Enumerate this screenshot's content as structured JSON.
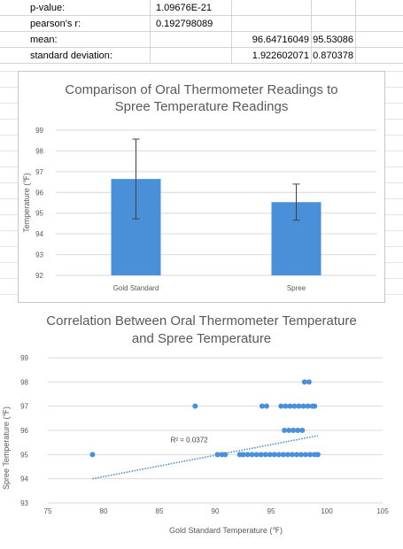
{
  "sheet": {
    "rows": [
      {
        "label": "p-value:",
        "b": "1.09676E-21",
        "c": "",
        "d": ""
      },
      {
        "label": "pearson's r:",
        "b": "0.192798089",
        "c": "",
        "d": ""
      },
      {
        "label": "mean:",
        "b": "",
        "c": "96.64716049",
        "d": "95.53086"
      },
      {
        "label": "standard deviation:",
        "b": "",
        "c": "1.922602071",
        "d": "0.870378"
      }
    ]
  },
  "chart_data": [
    {
      "type": "bar",
      "title_line1": "Comparison of Oral Thermometer Readings to",
      "title_line2": "Spree Temperature Readings",
      "ylabel": "Temperature (℉)",
      "categories": [
        "Gold Standard",
        "Spree"
      ],
      "values": [
        96.647,
        95.531
      ],
      "error": [
        1.923,
        0.87
      ],
      "ylim": [
        92,
        99
      ],
      "yticks": [
        "92",
        "93",
        "94",
        "95",
        "96",
        "97",
        "98",
        "99"
      ],
      "bar_color": "#4a90d9",
      "grid": true
    },
    {
      "type": "scatter",
      "title_line1": "Correlation Between Oral Thermometer Temperature",
      "title_line2": "and Spree Temperature",
      "xlabel": "Gold Standard Temperature (℉)",
      "ylabel": "Spree Temperature (℉)",
      "xlim": [
        75,
        105
      ],
      "ylim": [
        93,
        99
      ],
      "xticks": [
        "75",
        "80",
        "85",
        "90",
        "95",
        "100",
        "105"
      ],
      "yticks": [
        "93",
        "94",
        "95",
        "96",
        "97",
        "98",
        "99"
      ],
      "r2_label": "R² = 0.0372",
      "trendline": {
        "x1": 79,
        "y1": 94.0,
        "x2": 99.2,
        "y2": 95.78
      },
      "point_color": "#4a90d9",
      "points": [
        [
          79.0,
          95
        ],
        [
          88.2,
          97
        ],
        [
          90.2,
          95
        ],
        [
          90.6,
          95
        ],
        [
          90.9,
          95
        ],
        [
          92.2,
          95
        ],
        [
          92.5,
          95
        ],
        [
          92.9,
          95
        ],
        [
          93.3,
          95
        ],
        [
          93.7,
          95
        ],
        [
          94.1,
          95
        ],
        [
          94.5,
          95
        ],
        [
          94.9,
          95
        ],
        [
          95.3,
          95
        ],
        [
          95.7,
          95
        ],
        [
          96.1,
          95
        ],
        [
          96.5,
          95
        ],
        [
          96.9,
          95
        ],
        [
          97.3,
          95
        ],
        [
          97.7,
          95
        ],
        [
          98.1,
          95
        ],
        [
          98.5,
          95
        ],
        [
          98.9,
          95
        ],
        [
          99.2,
          95
        ],
        [
          96.2,
          96
        ],
        [
          96.6,
          96
        ],
        [
          97.0,
          96
        ],
        [
          97.4,
          96
        ],
        [
          97.8,
          96
        ],
        [
          94.2,
          97
        ],
        [
          94.6,
          97
        ],
        [
          95.9,
          97
        ],
        [
          96.3,
          97
        ],
        [
          96.7,
          97
        ],
        [
          97.1,
          97
        ],
        [
          97.5,
          97
        ],
        [
          97.9,
          97
        ],
        [
          98.3,
          97
        ],
        [
          98.7,
          97
        ],
        [
          98.9,
          97
        ],
        [
          98.0,
          98
        ],
        [
          98.4,
          98
        ]
      ]
    }
  ]
}
